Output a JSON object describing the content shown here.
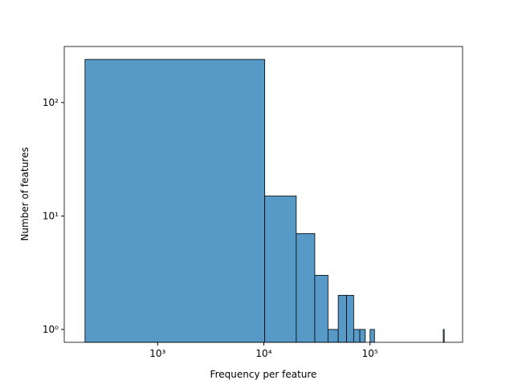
{
  "chart_data": {
    "type": "histogram",
    "xlabel": "Frequency per feature",
    "ylabel": "Number of features",
    "bins": [
      207,
      10207,
      20207,
      30207,
      40207,
      50207,
      60207,
      70207,
      80207,
      90207,
      100207,
      110207,
      120207,
      130207,
      140207,
      150207,
      160207,
      170207,
      180207,
      190207,
      200207,
      210207,
      220207,
      230207,
      240207,
      250207,
      260207,
      270207,
      280207,
      290207,
      300207,
      310207,
      320207,
      330207,
      340207,
      350207,
      360207,
      370207,
      380207,
      390207,
      400207,
      410207,
      420207,
      430207,
      440207,
      450207,
      460207,
      470207,
      480207,
      490207,
      500207
    ],
    "values": [
      240,
      15,
      7,
      3,
      1,
      2,
      2,
      1,
      1,
      0,
      1,
      0,
      0,
      0,
      0,
      0,
      0,
      0,
      0,
      0,
      0,
      0,
      0,
      0,
      0,
      0,
      0,
      0,
      0,
      0,
      0,
      0,
      0,
      0,
      0,
      0,
      0,
      0,
      0,
      0,
      0,
      0,
      0,
      0,
      0,
      0,
      0,
      0,
      0,
      1
    ],
    "color": "#5799c7",
    "xscale": "log",
    "yscale": "log",
    "xlim": [
      132,
      745000
    ],
    "ylim": [
      0.77,
      312
    ],
    "xticks": [
      {
        "value": 1000,
        "label": "10³"
      },
      {
        "value": 10000,
        "label": "10⁴"
      },
      {
        "value": 100000,
        "label": "10⁵"
      }
    ],
    "yticks": [
      {
        "value": 1,
        "label": "10⁰"
      },
      {
        "value": 10,
        "label": "10¹"
      },
      {
        "value": 100,
        "label": "10²"
      }
    ]
  }
}
